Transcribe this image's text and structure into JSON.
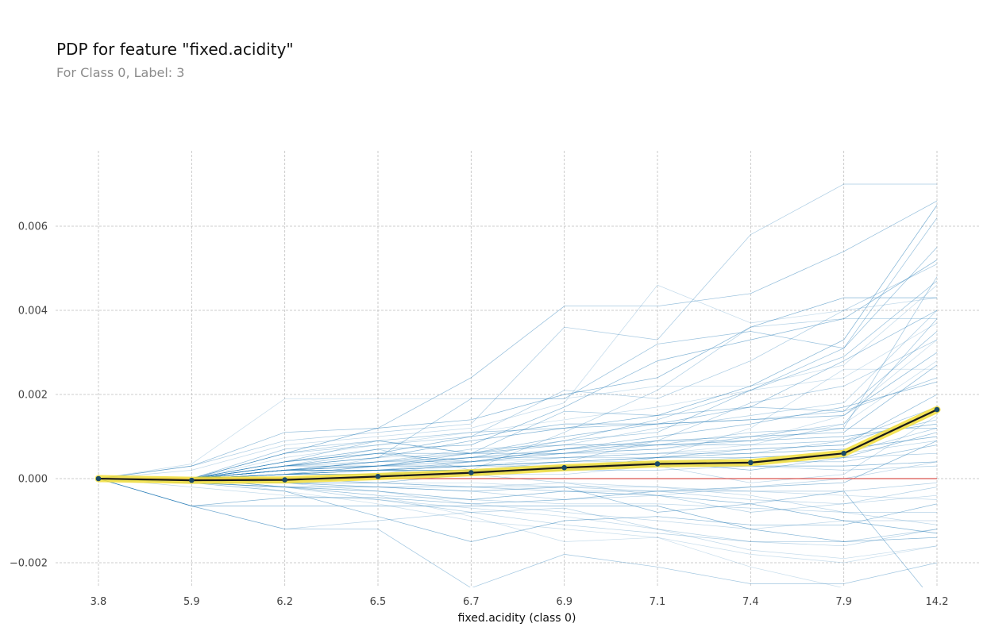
{
  "title": "PDP for feature \"fixed.acidity\"",
  "subtitle": "For Class 0, Label: 3",
  "chart_data": {
    "type": "line",
    "x_categories": [
      "3.8",
      "5.9",
      "6.2",
      "6.5",
      "6.7",
      "6.9",
      "7.1",
      "7.4",
      "7.9",
      "14.2"
    ],
    "xlabel": "fixed.acidity (class 0)",
    "ylabel": "",
    "ylim": [
      -0.0026,
      0.0078
    ],
    "y_ticks": [
      -0.002,
      0.0,
      0.002,
      0.004,
      0.006
    ],
    "y_tick_labels": [
      "−0.002",
      "0.000",
      "0.002",
      "0.004",
      "0.006"
    ],
    "grid": true,
    "pdp": [
      0.0,
      -4e-05,
      -3e-05,
      5e-05,
      0.00014,
      0.00026,
      0.00035,
      0.00038,
      0.0006,
      0.00164
    ],
    "zero_reference": 0.0,
    "colors": {
      "ice": "#1f77b4",
      "pdp_line": "#1a1a1a",
      "pdp_band": "#f2de3a",
      "pdp_marker": "#1a4a66",
      "zero_line": "#d9534f",
      "grid": "#bfbfbf"
    },
    "ice_lines": [
      [
        0,
        0.00035,
        0.0019,
        0.0019,
        0.0019,
        0.0019,
        0.0022,
        0.0022,
        0.0027,
        0.0046
      ],
      [
        0,
        0.0003,
        0.0011,
        0.0012,
        0.0024,
        0.0041,
        0.0041,
        0.0044,
        0.0054,
        0.0066
      ],
      [
        0,
        0.0003,
        0.0009,
        0.0011,
        0.0013,
        0.0036,
        0.0033,
        0.0058,
        0.007,
        0.007
      ],
      [
        0,
        0.0002,
        0.0008,
        0.001,
        0.0012,
        0.0018,
        0.0046,
        0.0037,
        0.004,
        0.0043
      ],
      [
        0,
        -0.00065,
        -0.00045,
        -0.00045,
        -0.0006,
        -0.0005,
        -0.0003,
        -0.0002,
        -0.0001,
        0.0009
      ],
      [
        0,
        -0.00065,
        -0.0012,
        -0.0012,
        -0.0026,
        -0.0018,
        -0.0021,
        -0.0025,
        -0.0025,
        -0.002
      ],
      [
        0,
        -0.00065,
        -0.0012,
        -0.001,
        -0.0008,
        -0.0007,
        -0.0012,
        -0.0015,
        -0.0016,
        -0.0012
      ],
      [
        0,
        -0.00065,
        -0.00065,
        -0.00065,
        -0.00065,
        -0.00065,
        -0.00065,
        -0.0012,
        -0.0015,
        -0.0014
      ],
      [
        0,
        0,
        0.0004,
        0.0009,
        0.0006,
        0.0009,
        0.0011,
        0.0021,
        0.0031,
        0.0062
      ],
      [
        0,
        0,
        0.0003,
        0.0007,
        0.0002,
        0.0011,
        0.0021,
        0.0036,
        0.0038,
        0.0038
      ],
      [
        0,
        0,
        0.0001,
        0.0005,
        0.0006,
        0.0006,
        0.0007,
        0.0009,
        0.0015,
        0.0033
      ],
      [
        0,
        -0.0001,
        -0.0002,
        -0.0002,
        -0.0003,
        -0.0002,
        -0.0008,
        -0.0006,
        -0.0003,
        -0.003
      ],
      [
        0,
        0,
        0.0006,
        0.0008,
        0.001,
        0.0021,
        0.0019,
        0.0028,
        0.004,
        0.0051
      ],
      [
        0,
        0,
        0.0002,
        0.0003,
        0.0003,
        0.0005,
        0.0005,
        0.0012,
        0.0026,
        0.0026
      ],
      [
        0,
        -0.0001,
        -0.0003,
        -0.0009,
        -0.0015,
        -0.001,
        -0.0009,
        -0.0011,
        -0.0011,
        -0.0006
      ],
      [
        0,
        0,
        0.0007,
        0.0009,
        0.0006,
        0.0006,
        0.0009,
        0.0009,
        0.0012,
        0.0048
      ],
      [
        0,
        0,
        0.0001,
        0.0001,
        0.0001,
        0.0001,
        0.0003,
        -0.0001,
        0.0001,
        0.0015
      ],
      [
        0,
        -0.0001,
        -0.0002,
        -0.0003,
        -0.0005,
        -0.0003,
        -0.0004,
        -0.0006,
        -0.001,
        -0.0013
      ],
      [
        0,
        0,
        0.0003,
        0.0005,
        0.0019,
        0.0019,
        0.0032,
        0.0035,
        0.0031,
        0.0055
      ],
      [
        0,
        0,
        0.0002,
        0.0004,
        0.0007,
        0.0008,
        0.0012,
        0.0015,
        0.0018,
        0.004
      ],
      [
        0,
        0,
        0.0001,
        0.0001,
        0.0004,
        0.0006,
        0.0006,
        0.0008,
        0.0013,
        0.0028
      ],
      [
        0,
        0,
        -0.0001,
        -0.0001,
        0.0001,
        0.0003,
        0.0004,
        0.0002,
        0.0005,
        0.0011
      ],
      [
        0,
        0,
        0.0002,
        0.0002,
        0.0003,
        0.0004,
        0.0009,
        0.0018,
        0.0022,
        0.0033
      ],
      [
        0,
        -0.0002,
        -0.0004,
        -0.0005,
        -0.0007,
        -0.0009,
        -0.0012,
        -0.0017,
        -0.0019,
        -0.0016
      ],
      [
        0,
        0,
        0.0004,
        0.0006,
        0.0004,
        0.0007,
        0.0009,
        0.001,
        0.0011,
        0.0027
      ],
      [
        0,
        0,
        0.0002,
        0.0003,
        0.0005,
        0.0007,
        0.0008,
        0.0008,
        0.0009,
        0.0017
      ],
      [
        0,
        0,
        -0.0001,
        -0.0002,
        -0.0003,
        -0.0005,
        -0.0004,
        -0.0002,
        0.0,
        0.0004
      ],
      [
        0,
        0,
        0.0006,
        0.0012,
        0.0014,
        0.002,
        0.0024,
        0.0036,
        0.0043,
        0.0043
      ],
      [
        0,
        0,
        0.0003,
        0.0003,
        0.0006,
        0.0016,
        0.0015,
        0.0017,
        0.0016,
        0.0024
      ],
      [
        0,
        0,
        0.0001,
        0.0002,
        0.0001,
        -0.0001,
        -0.0004,
        -0.0008,
        -0.0006,
        -0.0002
      ],
      [
        0,
        0,
        -0.0002,
        -0.0004,
        -0.0009,
        -0.0015,
        -0.0014,
        -0.0021,
        -0.0026,
        -0.0026
      ],
      [
        0,
        0,
        0.0002,
        0.0004,
        0.0006,
        0.001,
        0.0013,
        0.0017,
        0.0028,
        0.004
      ],
      [
        0,
        0,
        0.0001,
        0.0003,
        0.0003,
        0.0004,
        0.0004,
        0.0005,
        0.0006,
        0.0012
      ],
      [
        0,
        0,
        -0.0001,
        -0.0003,
        -0.0006,
        -0.0008,
        -0.001,
        -0.0012,
        -0.001,
        -0.001
      ],
      [
        0,
        0,
        0.0004,
        0.0007,
        0.0008,
        0.0017,
        0.0028,
        0.0033,
        0.0038,
        0.0052
      ],
      [
        0,
        0,
        0.0002,
        0.0002,
        0.0004,
        0.0006,
        0.0008,
        0.0011,
        0.0012,
        0.0012
      ],
      [
        0,
        0,
        0,
        -0.0001,
        -0.0002,
        -0.0002,
        -0.0003,
        -0.0005,
        -0.0006,
        -0.0004
      ],
      [
        0,
        0,
        0.0003,
        0.0005,
        0.0009,
        0.0012,
        0.0015,
        0.0022,
        0.0033,
        0.0065
      ],
      [
        0,
        0,
        0.0001,
        0.0002,
        0.0002,
        0.0003,
        0.0003,
        0.0004,
        0.0004,
        0.0008
      ],
      [
        0,
        0,
        -0.0002,
        -0.0005,
        -0.0008,
        -0.0011,
        -0.0013,
        -0.0015,
        -0.0015,
        -0.0012
      ],
      [
        0,
        0,
        0.0005,
        0.0008,
        0.0011,
        0.0014,
        0.0017,
        0.0021,
        0.0024,
        0.0037
      ],
      [
        0,
        0,
        0.0001,
        0.0001,
        0.0002,
        0.0002,
        0.0005,
        0.0007,
        0.0008,
        0.002
      ],
      [
        0,
        0,
        -0.0001,
        -0.0002,
        -0.0002,
        -0.0003,
        -0.0003,
        -0.0003,
        -0.0003,
        -0.0001
      ],
      [
        0,
        0,
        0.0002,
        0.0003,
        0.0005,
        0.0005,
        0.0006,
        0.0007,
        0.0008,
        0.0016
      ],
      [
        0,
        0,
        0.0003,
        0.0006,
        0.001,
        0.0013,
        0.0013,
        0.0014,
        0.0015,
        0.003
      ],
      [
        0,
        0,
        0.0002,
        0.0004,
        0.0004,
        0.0005,
        0.0006,
        0.0006,
        0.0009,
        0.0014
      ],
      [
        0,
        0,
        -0.0001,
        -0.0001,
        -0.0002,
        -0.0001,
        -0.0002,
        -0.0004,
        -0.0008,
        -0.0011
      ],
      [
        0,
        0,
        0.0001,
        0.0002,
        0.0003,
        0.0004,
        0.0005,
        0.0006,
        0.0007,
        0.001
      ],
      [
        0,
        0,
        0.0006,
        0.0009,
        0.0011,
        0.0012,
        0.0013,
        0.0014,
        0.0016,
        0.0035
      ],
      [
        0,
        0,
        0,
        0.0001,
        0.0001,
        0.0002,
        0.0002,
        0.0003,
        0.0002,
        0.0003
      ],
      [
        0,
        0,
        -0.0003,
        -0.0006,
        -0.001,
        -0.0012,
        -0.0014,
        -0.0018,
        -0.002,
        -0.0016
      ],
      [
        0,
        0,
        0.0002,
        0.0003,
        0.0004,
        0.0007,
        0.001,
        0.0013,
        0.0017,
        0.0023
      ],
      [
        0,
        0,
        0.0001,
        0.0002,
        0.0003,
        0.0003,
        0.0004,
        0.0004,
        0.0005,
        0.0006
      ],
      [
        0,
        0,
        0,
        -0.0001,
        -0.0001,
        -0.0002,
        -0.0002,
        -0.0003,
        -0.0004,
        -0.0005
      ],
      [
        0,
        0,
        0.0004,
        0.0006,
        0.0006,
        0.0008,
        0.0008,
        0.0009,
        0.001,
        0.0013
      ],
      [
        0,
        0,
        0.0001,
        0.0003,
        0.0005,
        0.0006,
        0.0007,
        0.001,
        0.0013,
        0.0038
      ],
      [
        0,
        0,
        -0.0002,
        -0.0004,
        -0.0005,
        -0.0006,
        -0.0006,
        -0.0007,
        -0.0008,
        -0.0008
      ],
      [
        0,
        0,
        0.0002,
        0.0002,
        0.0002,
        0.0002,
        0.0003,
        0.0003,
        0.0003,
        0.0004
      ],
      [
        0,
        0,
        0.0003,
        0.0004,
        0.0005,
        0.0009,
        0.0014,
        0.0021,
        0.0029,
        0.0047
      ],
      [
        0,
        0,
        0.0001,
        0.0001,
        0.0002,
        0.0004,
        0.0005,
        0.0005,
        0.0006,
        0.0009
      ]
    ]
  }
}
